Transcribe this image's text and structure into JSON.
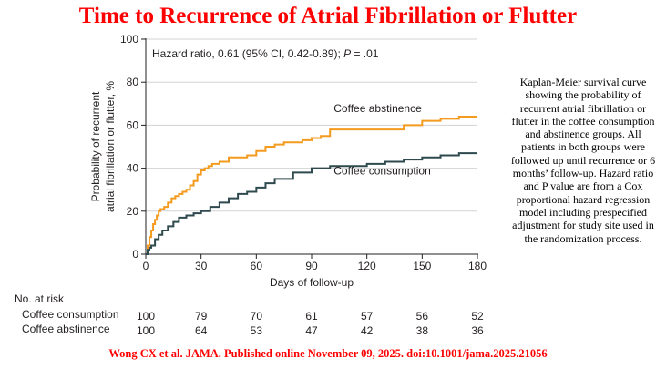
{
  "header": {
    "title": "Time to Recurrence of Atrial Fibrillation or Flutter"
  },
  "chart_data": {
    "type": "line",
    "subtype": "kaplan-meier",
    "title": "Time to Recurrence of Atrial Fibrillation or Flutter",
    "xlabel": "Days of follow-up",
    "ylabel_lines": [
      "Probability of recurrent",
      "atrial fibrillation or flutter, %"
    ],
    "xlim": [
      0,
      180
    ],
    "ylim": [
      0,
      100
    ],
    "xticks": [
      0,
      30,
      60,
      90,
      120,
      150,
      180
    ],
    "yticks": [
      0,
      20,
      40,
      60,
      80,
      100
    ],
    "annotation_prefix": "Hazard ratio, 0.61 (95% CI, 0.42-0.89); ",
    "annotation_p": "P",
    "annotation_suffix": " = .01",
    "series": [
      {
        "name": "Coffee abstinence",
        "color": "#f49b1f",
        "x": [
          0,
          1,
          2,
          3,
          4,
          5,
          6,
          7,
          8,
          10,
          12,
          14,
          16,
          18,
          20,
          22,
          24,
          26,
          28,
          30,
          32,
          34,
          36,
          40,
          45,
          50,
          55,
          60,
          65,
          70,
          75,
          80,
          85,
          90,
          95,
          100,
          120,
          130,
          140,
          150,
          160,
          170,
          180
        ],
        "y": [
          0,
          4,
          8,
          11,
          14,
          16,
          18,
          20,
          21,
          22,
          24,
          26,
          27,
          28,
          29,
          30,
          32,
          34,
          37,
          39,
          40,
          41,
          42,
          43,
          45,
          45,
          46,
          48,
          50,
          51,
          52,
          52,
          53,
          54,
          55,
          58,
          58,
          58,
          60,
          62,
          63,
          64,
          64
        ]
      },
      {
        "name": "Coffee consumption",
        "color": "#2f4a4e",
        "x": [
          0,
          1,
          2,
          3,
          5,
          7,
          9,
          12,
          15,
          18,
          22,
          26,
          30,
          35,
          40,
          45,
          50,
          55,
          60,
          65,
          70,
          80,
          90,
          100,
          120,
          130,
          140,
          150,
          160,
          170,
          180
        ],
        "y": [
          0,
          2,
          3,
          4,
          7,
          9,
          11,
          13,
          15,
          17,
          18,
          19,
          20,
          22,
          24,
          26,
          28,
          29,
          31,
          33,
          35,
          38,
          40,
          41,
          42,
          43,
          44,
          45,
          46,
          47,
          47
        ]
      }
    ],
    "at_risk": {
      "heading": "No. at risk",
      "days": [
        0,
        30,
        60,
        90,
        120,
        150,
        180
      ],
      "rows": [
        {
          "label": "Coffee consumption",
          "values": [
            100,
            79,
            70,
            61,
            57,
            56,
            52
          ]
        },
        {
          "label": "Coffee abstinence",
          "values": [
            100,
            64,
            53,
            47,
            42,
            38,
            36
          ]
        }
      ]
    }
  },
  "caption": "Kaplan-Meier survival curve showing the probability of recurrent atrial fibrillation or flutter in the coffee consumption and abstinence groups. All patients in both groups were followed up until recurrence or 6 months’ follow-up. Hazard ratio and P value are from a Cox proportional hazard regression model including prespecified adjustment for study site used in the randomization process.",
  "citation": "Wong CX et al. JAMA. Published online  November 09, 2025. doi:10.1001/jama.2025.21056"
}
